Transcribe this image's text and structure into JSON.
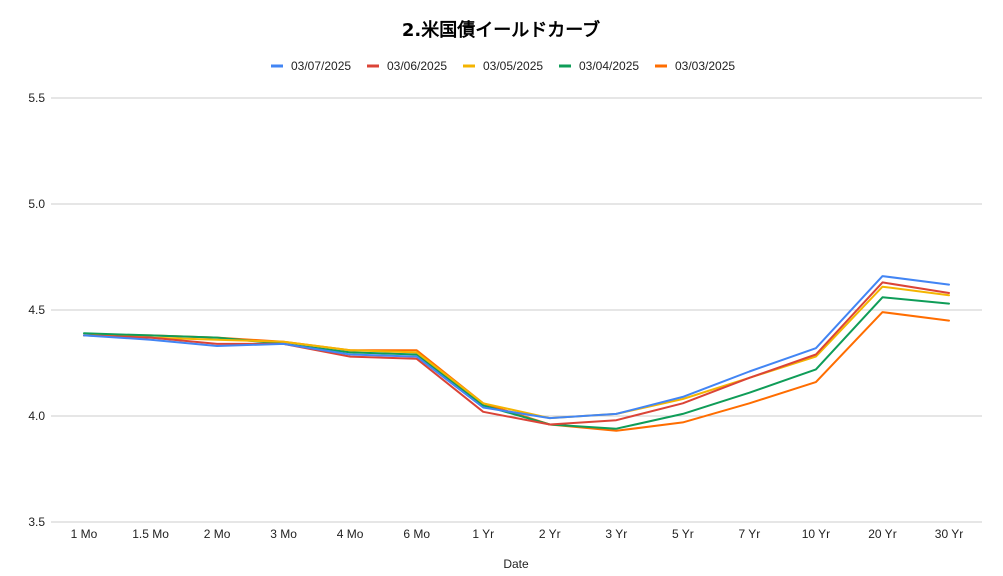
{
  "chart_data": {
    "type": "line",
    "title": "2.米国債イールドカーブ",
    "xlabel": "Date",
    "ylabel": "",
    "categories": [
      "1 Mo",
      "1.5 Mo",
      "2 Mo",
      "3 Mo",
      "4 Mo",
      "6 Mo",
      "1 Yr",
      "2 Yr",
      "3 Yr",
      "5 Yr",
      "7 Yr",
      "10 Yr",
      "20 Yr",
      "30 Yr"
    ],
    "ylim": [
      3.5,
      5.5
    ],
    "yticks": [
      "3.5",
      "4.0",
      "4.5",
      "5.0",
      "5.5"
    ],
    "grid": true,
    "legend_position": "top",
    "series": [
      {
        "name": "03/07/2025",
        "color": "#4285f4",
        "values": [
          4.38,
          4.36,
          4.33,
          4.34,
          4.29,
          4.28,
          4.04,
          3.99,
          4.01,
          4.09,
          4.21,
          4.32,
          4.66,
          4.62
        ]
      },
      {
        "name": "03/06/2025",
        "color": "#db4437",
        "values": [
          4.38,
          4.37,
          4.34,
          4.34,
          4.28,
          4.27,
          4.02,
          3.96,
          3.98,
          4.06,
          4.18,
          4.29,
          4.63,
          4.58
        ]
      },
      {
        "name": "03/05/2025",
        "color": "#f4b400",
        "values": [
          4.38,
          4.37,
          4.36,
          4.35,
          4.31,
          4.3,
          4.06,
          3.99,
          4.01,
          4.08,
          4.18,
          4.28,
          4.61,
          4.57
        ]
      },
      {
        "name": "03/04/2025",
        "color": "#0f9d58",
        "values": [
          4.39,
          4.38,
          4.37,
          4.34,
          4.3,
          4.29,
          4.05,
          3.96,
          3.94,
          4.01,
          4.11,
          4.22,
          4.56,
          4.53
        ]
      },
      {
        "name": "03/03/2025",
        "color": "#ff6d00",
        "values": [
          4.38,
          4.38,
          4.37,
          4.35,
          4.31,
          4.31,
          4.06,
          3.96,
          3.93,
          3.97,
          4.06,
          4.16,
          4.49,
          4.45
        ]
      }
    ]
  }
}
